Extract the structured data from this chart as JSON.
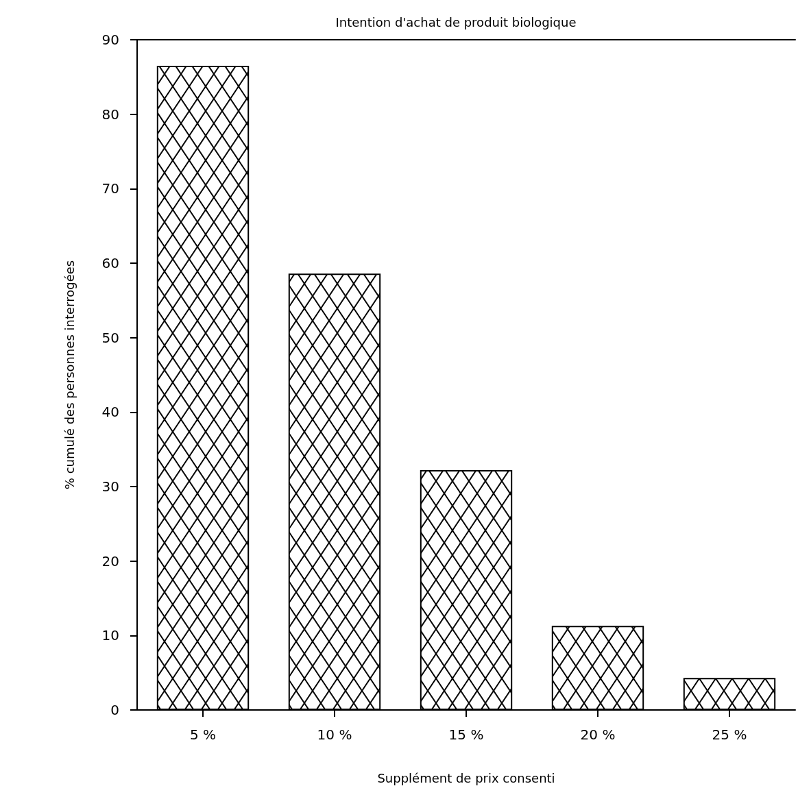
{
  "chart_data": {
    "type": "bar",
    "title": "Intention d'achat de produit biologique",
    "xlabel": "Supplément de prix consenti",
    "ylabel": "% cumulé des personnes interrogées",
    "categories": [
      "5 %",
      "10 %",
      "15 %",
      "20 %",
      "25 %"
    ],
    "values": [
      86.5,
      58.6,
      32.2,
      11.3,
      4.3
    ],
    "color": "#000000",
    "ylim": [
      0,
      90
    ],
    "yticks": [
      0,
      10,
      20,
      30,
      40,
      50,
      60,
      70,
      80,
      90
    ],
    "grid": false
  }
}
